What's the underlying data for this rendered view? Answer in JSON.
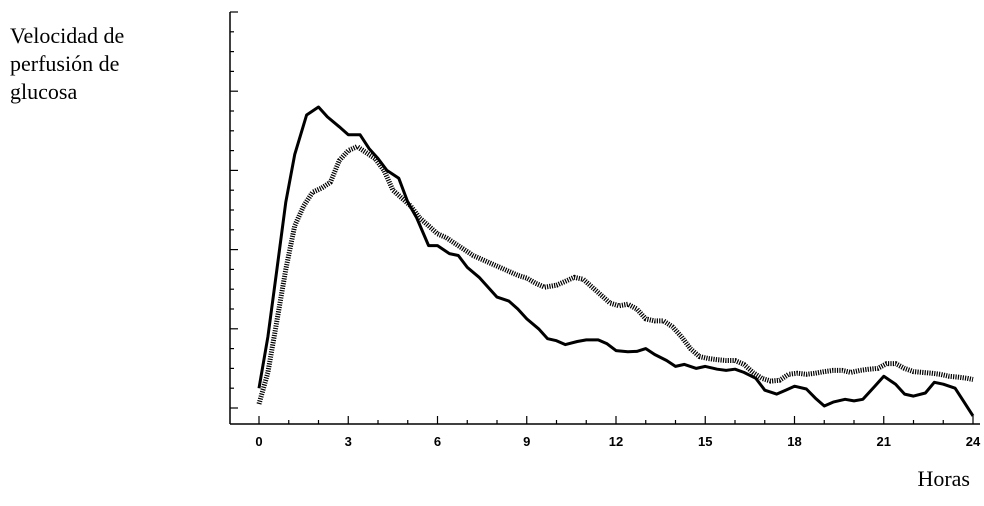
{
  "chart_data": {
    "type": "line",
    "ylabel_lines": [
      "Velocidad de",
      "perfusión de",
      "glucosa"
    ],
    "xlabel": "Horas",
    "x_ticks": [
      0,
      3,
      6,
      9,
      12,
      15,
      18,
      21,
      24
    ],
    "xlim": [
      0,
      24
    ],
    "ylim": [
      0,
      10
    ],
    "grid": false,
    "series": [
      {
        "style": "solid",
        "color": "#000000",
        "points": [
          [
            0,
            0.5
          ],
          [
            0.3,
            1.8
          ],
          [
            0.6,
            3.5
          ],
          [
            0.9,
            5.2
          ],
          [
            1.2,
            6.4
          ],
          [
            1.6,
            7.4
          ],
          [
            2.0,
            7.6
          ],
          [
            2.3,
            7.35
          ],
          [
            2.7,
            7.1
          ],
          [
            3.0,
            6.9
          ],
          [
            3.4,
            6.9
          ],
          [
            3.7,
            6.55
          ],
          [
            4.0,
            6.3
          ],
          [
            4.3,
            6.0
          ],
          [
            4.7,
            5.8
          ],
          [
            5.0,
            5.2
          ],
          [
            5.3,
            4.8
          ],
          [
            5.7,
            4.1
          ],
          [
            6.0,
            4.1
          ],
          [
            6.4,
            3.9
          ],
          [
            6.7,
            3.85
          ],
          [
            7.0,
            3.55
          ],
          [
            7.4,
            3.3
          ],
          [
            7.7,
            3.05
          ],
          [
            8.0,
            2.8
          ],
          [
            8.4,
            2.7
          ],
          [
            8.7,
            2.5
          ],
          [
            9.0,
            2.25
          ],
          [
            9.4,
            2.0
          ],
          [
            9.7,
            1.75
          ],
          [
            10.0,
            1.7
          ],
          [
            10.3,
            1.6
          ],
          [
            10.7,
            1.68
          ],
          [
            11.0,
            1.72
          ],
          [
            11.4,
            1.72
          ],
          [
            11.7,
            1.62
          ],
          [
            12.0,
            1.45
          ],
          [
            12.4,
            1.42
          ],
          [
            12.7,
            1.43
          ],
          [
            13.0,
            1.5
          ],
          [
            13.3,
            1.35
          ],
          [
            13.7,
            1.2
          ],
          [
            14.0,
            1.05
          ],
          [
            14.3,
            1.1
          ],
          [
            14.7,
            1.0
          ],
          [
            15.0,
            1.05
          ],
          [
            15.4,
            0.98
          ],
          [
            15.7,
            0.95
          ],
          [
            16.0,
            0.98
          ],
          [
            16.3,
            0.9
          ],
          [
            16.7,
            0.75
          ],
          [
            17.0,
            0.45
          ],
          [
            17.4,
            0.35
          ],
          [
            17.7,
            0.45
          ],
          [
            18.0,
            0.55
          ],
          [
            18.4,
            0.48
          ],
          [
            18.7,
            0.25
          ],
          [
            19.0,
            0.05
          ],
          [
            19.3,
            0.15
          ],
          [
            19.7,
            0.22
          ],
          [
            20.0,
            0.18
          ],
          [
            20.3,
            0.22
          ],
          [
            20.7,
            0.55
          ],
          [
            21.0,
            0.8
          ],
          [
            21.4,
            0.6
          ],
          [
            21.7,
            0.35
          ],
          [
            22.0,
            0.3
          ],
          [
            22.4,
            0.38
          ],
          [
            22.7,
            0.65
          ],
          [
            23.0,
            0.6
          ],
          [
            23.4,
            0.5
          ],
          [
            23.7,
            0.15
          ],
          [
            24.0,
            -0.2
          ]
        ]
      },
      {
        "style": "dashed",
        "color": "#000000",
        "points": [
          [
            0,
            0.1
          ],
          [
            0.3,
            0.9
          ],
          [
            0.6,
            2.2
          ],
          [
            0.9,
            3.5
          ],
          [
            1.2,
            4.6
          ],
          [
            1.5,
            5.1
          ],
          [
            1.8,
            5.45
          ],
          [
            2.1,
            5.55
          ],
          [
            2.4,
            5.7
          ],
          [
            2.7,
            6.25
          ],
          [
            3.0,
            6.5
          ],
          [
            3.3,
            6.6
          ],
          [
            3.6,
            6.45
          ],
          [
            3.9,
            6.3
          ],
          [
            4.2,
            6.0
          ],
          [
            4.5,
            5.5
          ],
          [
            4.8,
            5.3
          ],
          [
            5.1,
            5.1
          ],
          [
            5.4,
            4.8
          ],
          [
            5.7,
            4.6
          ],
          [
            6.0,
            4.4
          ],
          [
            6.3,
            4.3
          ],
          [
            6.6,
            4.15
          ],
          [
            6.9,
            4.0
          ],
          [
            7.2,
            3.85
          ],
          [
            7.5,
            3.75
          ],
          [
            7.8,
            3.65
          ],
          [
            8.1,
            3.55
          ],
          [
            8.4,
            3.45
          ],
          [
            8.7,
            3.35
          ],
          [
            9.0,
            3.28
          ],
          [
            9.3,
            3.15
          ],
          [
            9.6,
            3.05
          ],
          [
            10.0,
            3.1
          ],
          [
            10.3,
            3.2
          ],
          [
            10.6,
            3.3
          ],
          [
            10.9,
            3.25
          ],
          [
            11.2,
            3.05
          ],
          [
            11.5,
            2.85
          ],
          [
            11.8,
            2.65
          ],
          [
            12.1,
            2.58
          ],
          [
            12.4,
            2.62
          ],
          [
            12.7,
            2.5
          ],
          [
            13.0,
            2.25
          ],
          [
            13.3,
            2.2
          ],
          [
            13.6,
            2.2
          ],
          [
            13.9,
            2.05
          ],
          [
            14.2,
            1.8
          ],
          [
            14.5,
            1.5
          ],
          [
            14.8,
            1.3
          ],
          [
            15.1,
            1.25
          ],
          [
            15.4,
            1.22
          ],
          [
            15.7,
            1.2
          ],
          [
            16.0,
            1.2
          ],
          [
            16.3,
            1.1
          ],
          [
            16.6,
            0.9
          ],
          [
            16.9,
            0.75
          ],
          [
            17.2,
            0.68
          ],
          [
            17.5,
            0.7
          ],
          [
            17.8,
            0.85
          ],
          [
            18.1,
            0.88
          ],
          [
            18.4,
            0.85
          ],
          [
            18.7,
            0.88
          ],
          [
            19.0,
            0.92
          ],
          [
            19.3,
            0.95
          ],
          [
            19.6,
            0.95
          ],
          [
            19.9,
            0.9
          ],
          [
            20.2,
            0.95
          ],
          [
            20.5,
            0.98
          ],
          [
            20.8,
            1.0
          ],
          [
            21.1,
            1.12
          ],
          [
            21.4,
            1.12
          ],
          [
            21.7,
            1.0
          ],
          [
            22.0,
            0.92
          ],
          [
            22.3,
            0.9
          ],
          [
            22.6,
            0.88
          ],
          [
            22.9,
            0.85
          ],
          [
            23.2,
            0.8
          ],
          [
            23.5,
            0.78
          ],
          [
            23.8,
            0.75
          ],
          [
            24.0,
            0.72
          ]
        ]
      }
    ]
  }
}
